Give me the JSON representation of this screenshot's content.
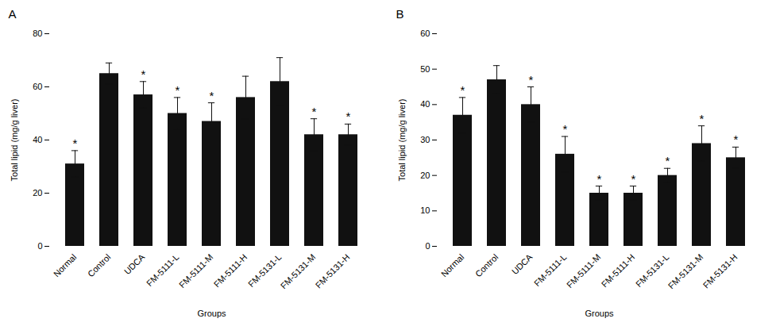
{
  "chart_data": [
    {
      "type": "bar",
      "title": "A",
      "categories": [
        "Normal",
        "Control",
        "UDCA",
        "FM-5111-L",
        "FM-5111-M",
        "FM-5111-H",
        "FM-5131-L",
        "FM-5131-M",
        "FM-5131-H"
      ],
      "values": [
        31,
        65,
        57,
        50,
        47,
        56,
        62,
        42,
        42
      ],
      "errors": [
        5,
        4,
        5,
        6,
        7,
        8,
        9,
        6,
        4
      ],
      "annotations": [
        {
          "x": "Normal",
          "text": "*"
        },
        {
          "x": "UDCA",
          "text": "*"
        },
        {
          "x": "FM-5111-L",
          "text": "*"
        },
        {
          "x": "FM-5111-M",
          "text": "*"
        },
        {
          "x": "FM-5131-M",
          "text": "*"
        },
        {
          "x": "FM-5131-H",
          "text": "*"
        }
      ],
      "color": "#111111",
      "ylabel": "Total lipid (mg/g liver)",
      "xlabel": "Groups",
      "ylim": [
        0,
        80
      ],
      "yticks": [
        0,
        20,
        40,
        60,
        80
      ],
      "grid": false
    },
    {
      "type": "bar",
      "title": "B",
      "categories": [
        "Normal",
        "Control",
        "UDCA",
        "FM-5111-L",
        "FM-5111-M",
        "FM-5111-H",
        "FM-5131-L",
        "FM-5131-M",
        "FM-5131-H"
      ],
      "values": [
        37,
        47,
        40,
        26,
        15,
        15,
        20,
        29,
        25
      ],
      "errors": [
        5,
        4,
        5,
        5,
        2,
        2,
        2,
        5,
        3
      ],
      "annotations": [
        {
          "x": "Normal",
          "text": "*"
        },
        {
          "x": "UDCA",
          "text": "*"
        },
        {
          "x": "FM-5111-L",
          "text": "*"
        },
        {
          "x": "FM-5111-M",
          "text": "*"
        },
        {
          "x": "FM-5111-H",
          "text": "*"
        },
        {
          "x": "FM-5131-L",
          "text": "*"
        },
        {
          "x": "FM-5131-M",
          "text": "*"
        },
        {
          "x": "FM-5131-H",
          "text": "*"
        }
      ],
      "color": "#111111",
      "ylabel": "Total lipid (mg/g liver)",
      "xlabel": "Groups",
      "ylim": [
        0,
        60
      ],
      "yticks": [
        0,
        10,
        20,
        30,
        40,
        50,
        60
      ],
      "grid": false
    }
  ]
}
